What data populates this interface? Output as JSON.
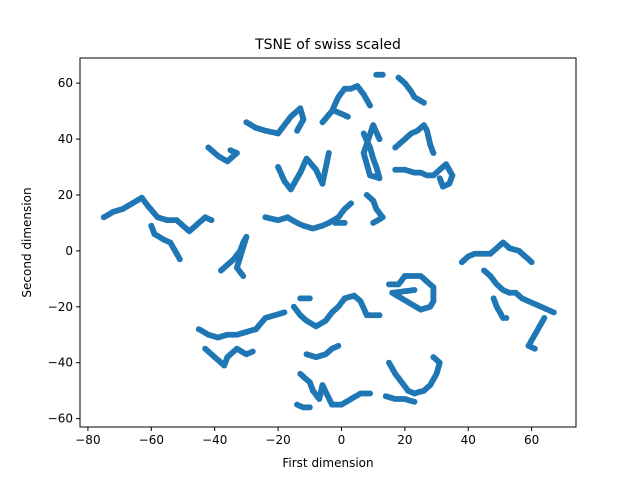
{
  "chart_data": {
    "type": "scatter",
    "title": "TSNE of swiss scaled",
    "xlabel": "First dimension",
    "ylabel": "Second dimension",
    "xlim": [
      -82.5,
      74
    ],
    "ylim": [
      -63,
      69
    ],
    "xticks": [
      -80,
      -60,
      -40,
      -20,
      0,
      20,
      40,
      60
    ],
    "yticks": [
      -60,
      -40,
      -20,
      0,
      20,
      40,
      60
    ],
    "marker_color": "#1f77b4",
    "grid": false,
    "legend": "none",
    "clusters": [
      {
        "points": [
          [
            -75,
            12
          ],
          [
            -72,
            14
          ],
          [
            -69,
            15
          ],
          [
            -66,
            17
          ],
          [
            -63,
            19
          ],
          [
            -61,
            16
          ],
          [
            -58,
            12
          ],
          [
            -55,
            11
          ],
          [
            -52,
            11
          ],
          [
            -50,
            9
          ],
          [
            -48,
            7
          ],
          [
            -46,
            9
          ],
          [
            -43,
            12
          ],
          [
            -41,
            11
          ]
        ]
      },
      {
        "points": [
          [
            -60,
            9
          ],
          [
            -59,
            6
          ],
          [
            -56,
            4
          ],
          [
            -54,
            3
          ],
          [
            -53,
            1
          ],
          [
            -52,
            -1
          ],
          [
            -51,
            -3
          ]
        ]
      },
      {
        "points": [
          [
            -42,
            37
          ],
          [
            -39,
            34
          ],
          [
            -36,
            32
          ],
          [
            -33,
            35
          ],
          [
            -35,
            36
          ]
        ]
      },
      {
        "points": [
          [
            -30,
            46
          ],
          [
            -27,
            44
          ],
          [
            -24,
            43
          ],
          [
            -20,
            42
          ],
          [
            -16,
            48
          ],
          [
            -13,
            51
          ],
          [
            -12,
            47
          ],
          [
            -14,
            43
          ]
        ]
      },
      {
        "points": [
          [
            -20,
            30
          ],
          [
            -18,
            25
          ],
          [
            -16,
            22
          ],
          [
            -13,
            28
          ],
          [
            -11,
            33
          ],
          [
            -8,
            29
          ],
          [
            -6,
            24
          ],
          [
            -4,
            35
          ]
        ]
      },
      {
        "points": [
          [
            -24,
            12
          ],
          [
            -20,
            11
          ],
          [
            -17,
            12
          ],
          [
            -14,
            10
          ],
          [
            -12,
            9
          ],
          [
            -9,
            8
          ],
          [
            -6,
            9
          ],
          [
            -4,
            10
          ],
          [
            -1,
            12
          ],
          [
            1,
            15
          ],
          [
            3,
            17
          ]
        ]
      },
      {
        "points": [
          [
            -2,
            10
          ],
          [
            1,
            10
          ]
        ]
      },
      {
        "points": [
          [
            -38,
            -7
          ],
          [
            -36,
            -5
          ],
          [
            -34,
            -3
          ],
          [
            -32,
            0
          ],
          [
            -31,
            3
          ],
          [
            -30,
            5
          ],
          [
            -33,
            -6
          ],
          [
            -31,
            -9
          ]
        ]
      },
      {
        "points": [
          [
            -6,
            46
          ],
          [
            -3,
            50
          ],
          [
            -1,
            55
          ],
          [
            1,
            58
          ],
          [
            3,
            58
          ],
          [
            5,
            59
          ],
          [
            7,
            56
          ],
          [
            9,
            52
          ]
        ]
      },
      {
        "points": [
          [
            -2,
            50
          ],
          [
            0,
            49
          ],
          [
            2,
            48
          ]
        ]
      },
      {
        "points": [
          [
            7,
            42
          ],
          [
            9,
            37
          ],
          [
            10,
            33
          ],
          [
            11,
            30
          ],
          [
            12,
            26
          ],
          [
            9,
            27
          ],
          [
            7,
            35
          ],
          [
            10,
            45
          ],
          [
            12,
            40
          ]
        ]
      },
      {
        "points": [
          [
            8,
            20
          ],
          [
            10,
            18
          ],
          [
            11,
            15
          ],
          [
            13,
            12
          ],
          [
            10,
            10
          ]
        ]
      },
      {
        "points": [
          [
            11,
            63
          ],
          [
            13,
            63
          ]
        ]
      },
      {
        "points": [
          [
            18,
            62
          ],
          [
            20,
            60
          ],
          [
            22,
            57
          ],
          [
            23,
            55
          ],
          [
            26,
            53
          ]
        ]
      },
      {
        "points": [
          [
            17,
            37
          ],
          [
            20,
            40
          ],
          [
            22,
            42
          ],
          [
            24,
            43
          ],
          [
            26,
            45
          ],
          [
            27,
            43
          ],
          [
            28,
            38
          ],
          [
            29,
            35
          ]
        ]
      },
      {
        "points": [
          [
            17,
            29
          ],
          [
            20,
            29
          ],
          [
            23,
            28
          ],
          [
            25,
            28
          ],
          [
            27,
            27
          ],
          [
            29,
            27
          ],
          [
            31,
            29
          ],
          [
            33,
            31
          ],
          [
            35,
            27
          ],
          [
            34,
            24
          ],
          [
            32,
            23
          ],
          [
            31,
            26
          ]
        ]
      },
      {
        "points": [
          [
            -45,
            -28
          ],
          [
            -42,
            -30
          ],
          [
            -39,
            -31
          ],
          [
            -36,
            -30
          ],
          [
            -33,
            -30
          ],
          [
            -30,
            -29
          ],
          [
            -27,
            -28
          ],
          [
            -24,
            -24
          ],
          [
            -21,
            -23
          ],
          [
            -18,
            -22
          ]
        ]
      },
      {
        "points": [
          [
            -43,
            -35
          ],
          [
            -41,
            -37
          ],
          [
            -39,
            -39
          ],
          [
            -37,
            -41
          ],
          [
            -36,
            -38
          ],
          [
            -33,
            -35
          ],
          [
            -30,
            -37
          ],
          [
            -28,
            -36
          ]
        ]
      },
      {
        "points": [
          [
            -15,
            -20
          ],
          [
            -13,
            -23
          ],
          [
            -11,
            -25
          ],
          [
            -8,
            -27
          ],
          [
            -5,
            -25
          ],
          [
            -3,
            -22
          ],
          [
            -1,
            -20
          ],
          [
            1,
            -17
          ],
          [
            4,
            -16
          ],
          [
            6,
            -18
          ],
          [
            8,
            -23
          ],
          [
            12,
            -23
          ]
        ]
      },
      {
        "points": [
          [
            -13,
            -17
          ],
          [
            -10,
            -17
          ]
        ]
      },
      {
        "points": [
          [
            -11,
            -37
          ],
          [
            -8,
            -38
          ],
          [
            -5,
            -37
          ],
          [
            -3,
            -35
          ],
          [
            -1,
            -34
          ]
        ]
      },
      {
        "points": [
          [
            -13,
            -44
          ],
          [
            -10,
            -47
          ],
          [
            -9,
            -50
          ],
          [
            -7,
            -53
          ],
          [
            -6,
            -48
          ],
          [
            -3,
            -55
          ],
          [
            0,
            -55
          ],
          [
            3,
            -53
          ],
          [
            6,
            -51
          ],
          [
            9,
            -51
          ]
        ]
      },
      {
        "points": [
          [
            -14,
            -55
          ],
          [
            -12,
            -56
          ],
          [
            -10,
            -56
          ]
        ]
      },
      {
        "points": [
          [
            15,
            -12
          ],
          [
            18,
            -12
          ],
          [
            20,
            -9
          ],
          [
            22,
            -9
          ],
          [
            25,
            -9
          ],
          [
            27,
            -11
          ],
          [
            29,
            -13
          ],
          [
            29,
            -18
          ],
          [
            28,
            -20
          ],
          [
            25,
            -21
          ],
          [
            22,
            -19
          ],
          [
            19,
            -17
          ],
          [
            16,
            -15
          ],
          [
            23,
            -14
          ]
        ]
      },
      {
        "points": [
          [
            15,
            -40
          ],
          [
            17,
            -44
          ],
          [
            19,
            -47
          ],
          [
            21,
            -50
          ],
          [
            23,
            -51
          ],
          [
            26,
            -50
          ],
          [
            28,
            -48
          ],
          [
            30,
            -44
          ],
          [
            31,
            -40
          ],
          [
            29,
            -38
          ]
        ]
      },
      {
        "points": [
          [
            14,
            -52
          ],
          [
            17,
            -53
          ],
          [
            20,
            -53
          ],
          [
            23,
            -54
          ]
        ]
      },
      {
        "points": [
          [
            38,
            -4
          ],
          [
            40,
            -2
          ],
          [
            42,
            -1
          ],
          [
            45,
            -1
          ],
          [
            47,
            -1
          ],
          [
            49,
            1
          ],
          [
            51,
            3
          ],
          [
            53,
            1
          ],
          [
            56,
            0
          ],
          [
            58,
            -2
          ],
          [
            60,
            -4
          ]
        ]
      },
      {
        "points": [
          [
            45,
            -7
          ],
          [
            47,
            -9
          ],
          [
            49,
            -12
          ],
          [
            51,
            -14
          ],
          [
            53,
            -15
          ],
          [
            55,
            -15
          ],
          [
            57,
            -17
          ],
          [
            59,
            -18
          ],
          [
            61,
            -19
          ],
          [
            63,
            -20
          ],
          [
            65,
            -21
          ],
          [
            67,
            -22
          ]
        ]
      },
      {
        "points": [
          [
            48,
            -17
          ],
          [
            49,
            -20
          ],
          [
            50,
            -22
          ],
          [
            51,
            -24
          ],
          [
            52,
            -24
          ]
        ]
      },
      {
        "points": [
          [
            64,
            -24
          ],
          [
            63,
            -26
          ],
          [
            62,
            -28
          ],
          [
            61,
            -30
          ],
          [
            60,
            -32
          ],
          [
            59,
            -34
          ],
          [
            61,
            -35
          ]
        ]
      }
    ]
  }
}
